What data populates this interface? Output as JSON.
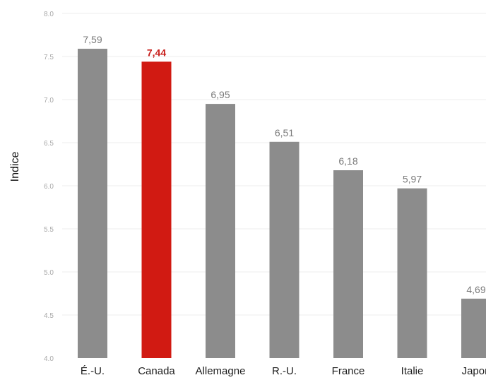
{
  "chart_data": {
    "type": "bar",
    "title": "",
    "xlabel": "",
    "ylabel": "Indice",
    "categories": [
      "É.-U.",
      "Canada",
      "Allemagne",
      "R.-U.",
      "France",
      "Italie",
      "Japon"
    ],
    "values": [
      7.59,
      7.44,
      6.95,
      6.51,
      6.18,
      5.97,
      4.69
    ],
    "value_labels": [
      "7,59",
      "7,44",
      "6,95",
      "6,51",
      "6,18",
      "5,97",
      "4,69"
    ],
    "highlight_index": 1,
    "ylim": [
      4.0,
      8.0
    ],
    "yticks": [
      4.0,
      4.5,
      5.0,
      5.5,
      6.0,
      6.5,
      7.0,
      7.5,
      8.0
    ],
    "ytick_labels": [
      "4.0",
      "4.5",
      "5.0",
      "5.5",
      "6.0",
      "6.5",
      "7.0",
      "7.5",
      "8.0"
    ],
    "grid": true,
    "legend": "none",
    "colors": {
      "bar": "#8c8c8c",
      "highlight": "#d11a12",
      "value_label": "#7a7a7a",
      "highlight_label": "#c8201d",
      "tick": "#a8a8a8",
      "grid": "#eeeeee"
    }
  }
}
